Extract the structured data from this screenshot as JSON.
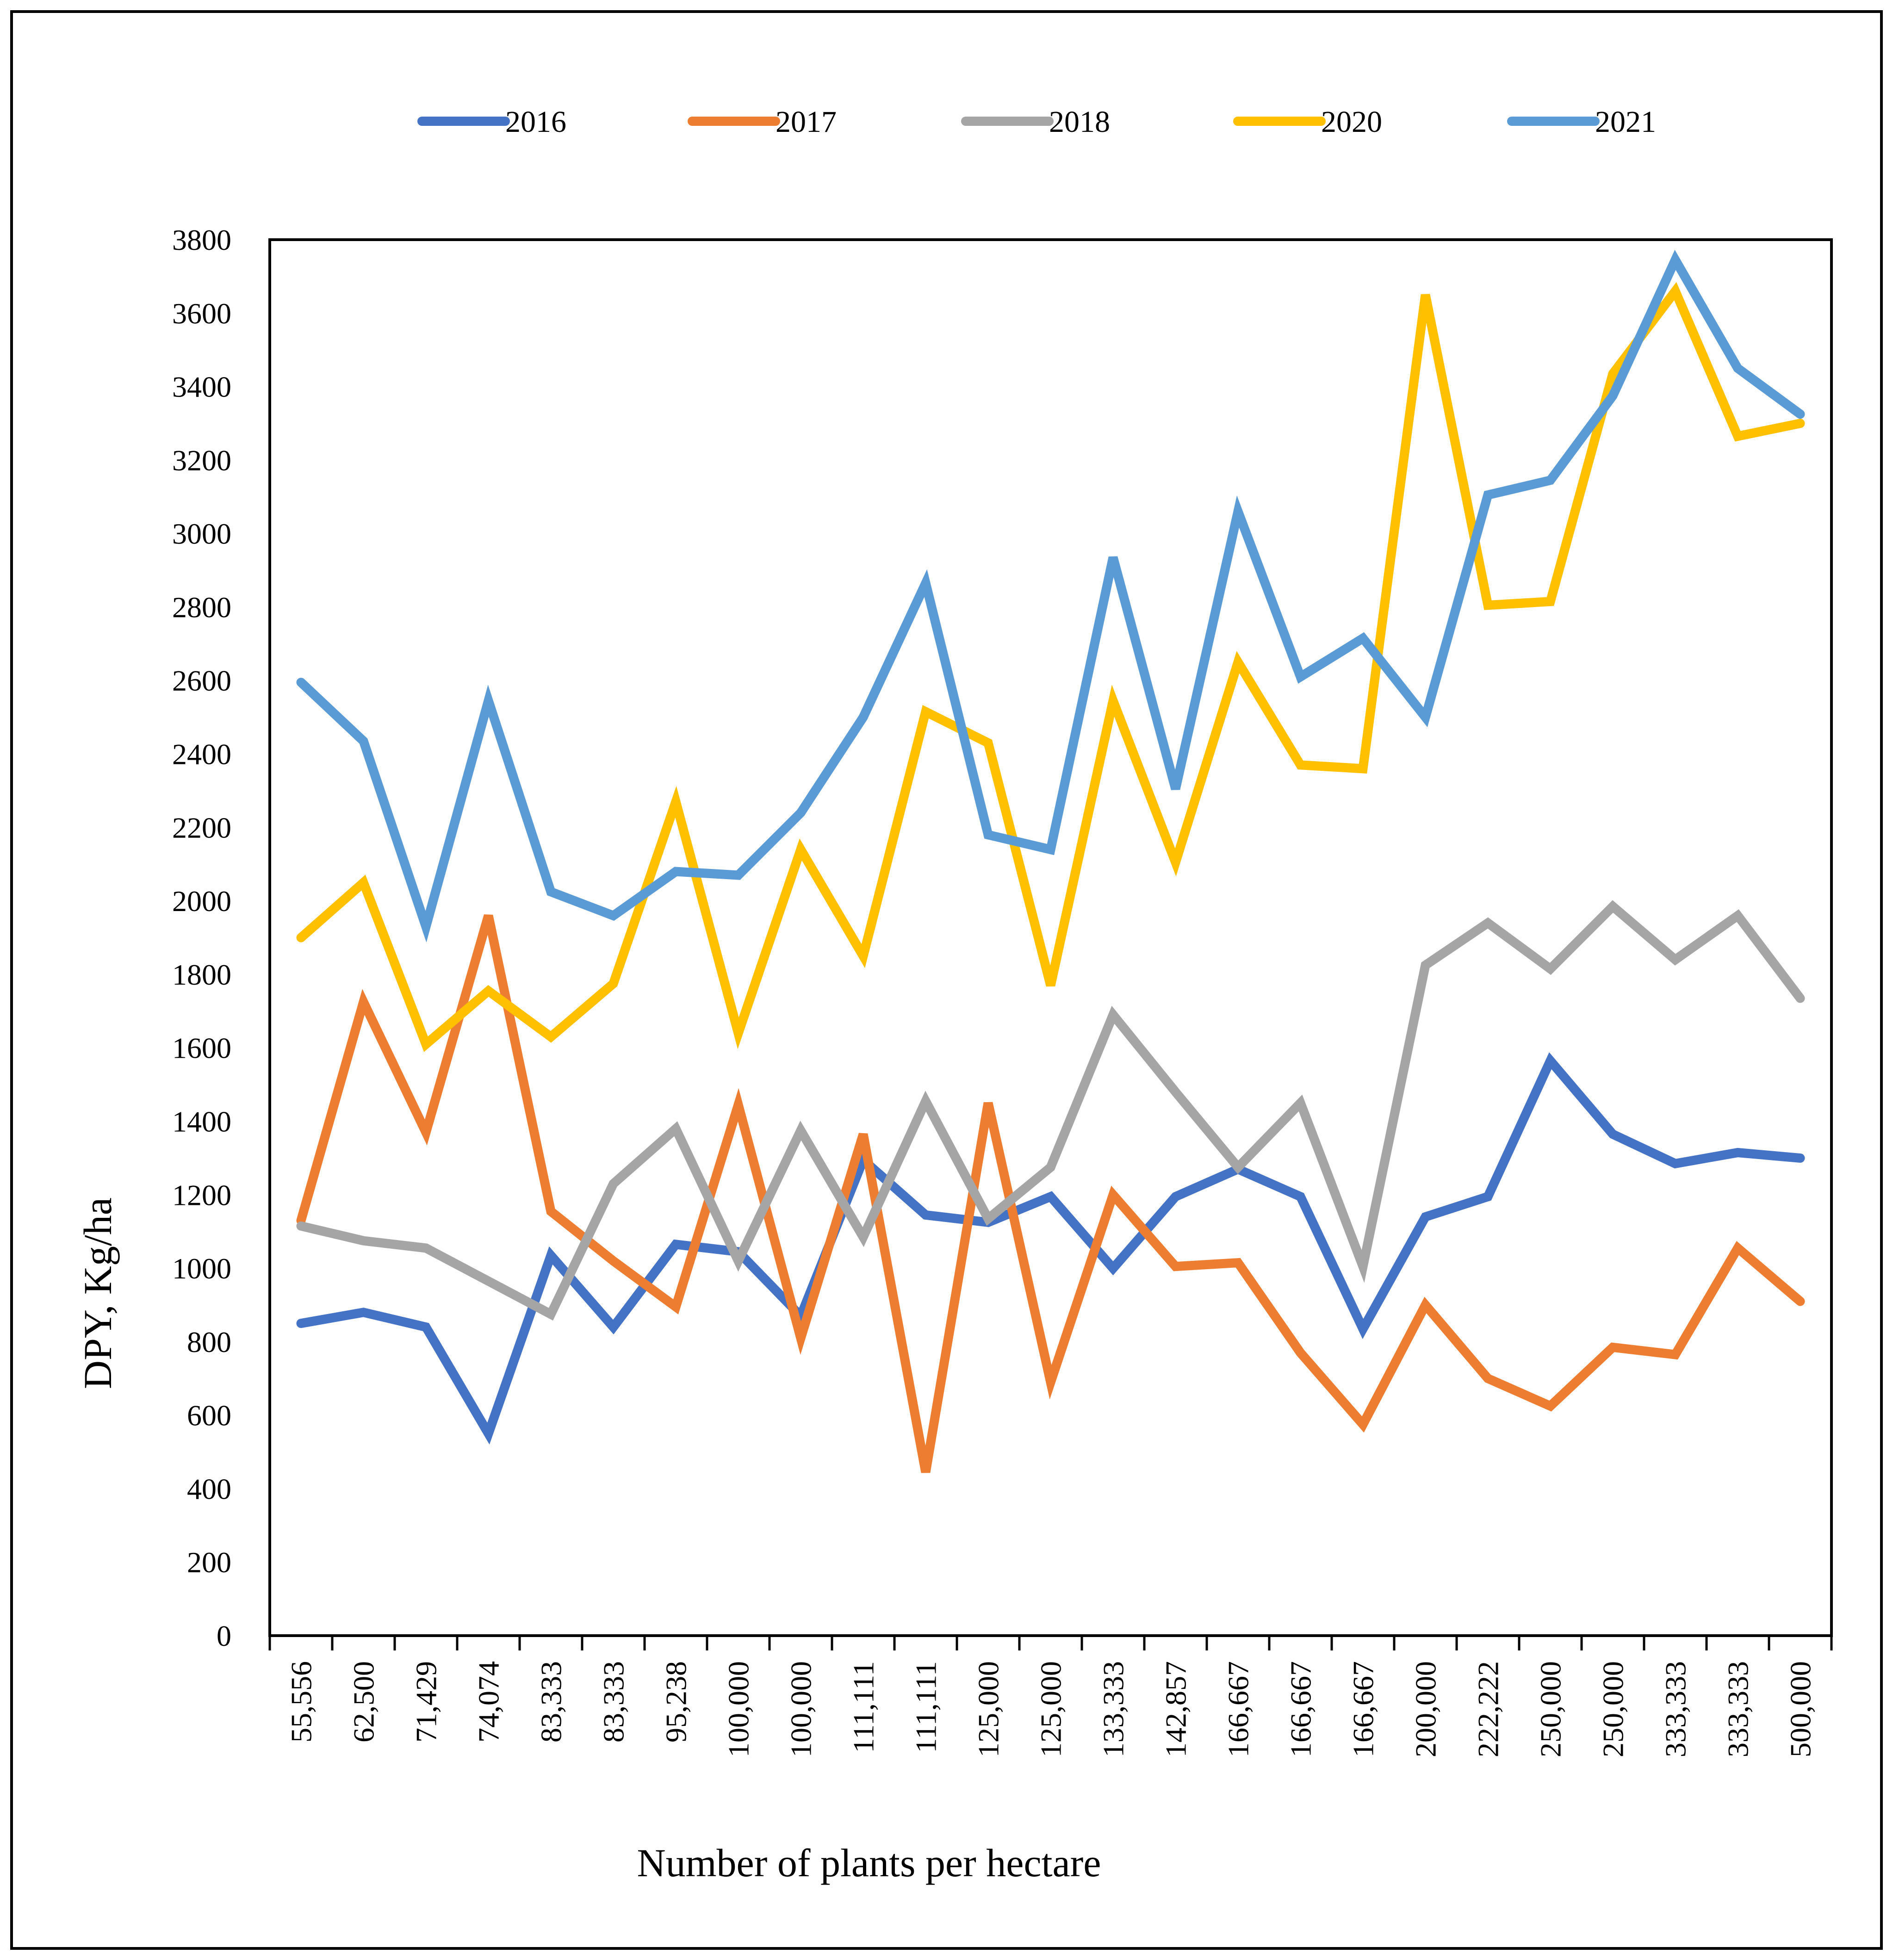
{
  "chart_data": {
    "type": "line",
    "title": "",
    "xlabel": "Number of plants per hectare",
    "ylabel": "DPY, Kg/ha",
    "ylim": [
      0,
      3800
    ],
    "yticks": [
      0,
      200,
      400,
      600,
      800,
      1000,
      1200,
      1400,
      1600,
      1800,
      2000,
      2200,
      2400,
      2600,
      2800,
      3000,
      3200,
      3400,
      3600,
      3800
    ],
    "grid": false,
    "legend_position": "top",
    "categories": [
      "55,556",
      "62,500",
      "71,429",
      "74,074",
      "83,333",
      "83,333",
      "95,238",
      "100,000",
      "100,000",
      "111,111",
      "111,111",
      "125,000",
      "125,000",
      "133,333",
      "142,857",
      "166,667",
      "166,667",
      "166,667",
      "200,000",
      "222,222",
      "250,000",
      "250,000",
      "333,333",
      "333,333",
      "500,000"
    ],
    "series": [
      {
        "name": "2016",
        "color": "#4472C4",
        "values": [
          850,
          880,
          840,
          550,
          1035,
          840,
          1065,
          1045,
          870,
          1295,
          1145,
          1125,
          1195,
          1000,
          1195,
          1270,
          1195,
          835,
          1140,
          1195,
          1565,
          1365,
          1285,
          1315,
          1300
        ]
      },
      {
        "name": "2017",
        "color": "#ED7D31",
        "values": [
          1130,
          1725,
          1370,
          1960,
          1155,
          1020,
          895,
          1445,
          810,
          1365,
          445,
          1450,
          690,
          1200,
          1005,
          1015,
          770,
          575,
          900,
          700,
          625,
          785,
          765,
          1055,
          910
        ]
      },
      {
        "name": "2018",
        "color": "#A5A5A5",
        "values": [
          1115,
          1075,
          1055,
          965,
          875,
          1230,
          1380,
          1020,
          1375,
          1085,
          1455,
          1135,
          1275,
          1690,
          1480,
          1275,
          1450,
          1005,
          1825,
          1940,
          1815,
          1985,
          1840,
          1960,
          1735
        ]
      },
      {
        "name": "2020",
        "color": "#FFC000",
        "values": [
          1900,
          2050,
          1610,
          1755,
          1630,
          1775,
          2270,
          1640,
          2140,
          1850,
          2515,
          2430,
          1770,
          2545,
          2105,
          2650,
          2370,
          2360,
          3650,
          2805,
          2815,
          3435,
          3660,
          3265,
          3300
        ]
      },
      {
        "name": "2021",
        "color": "#5B9BD5",
        "values": [
          2595,
          2435,
          1930,
          2545,
          2025,
          1960,
          2080,
          2070,
          2240,
          2500,
          2865,
          2180,
          2140,
          2935,
          2305,
          3060,
          2610,
          2715,
          2500,
          3105,
          3145,
          3375,
          3745,
          3450,
          3325
        ]
      }
    ]
  }
}
